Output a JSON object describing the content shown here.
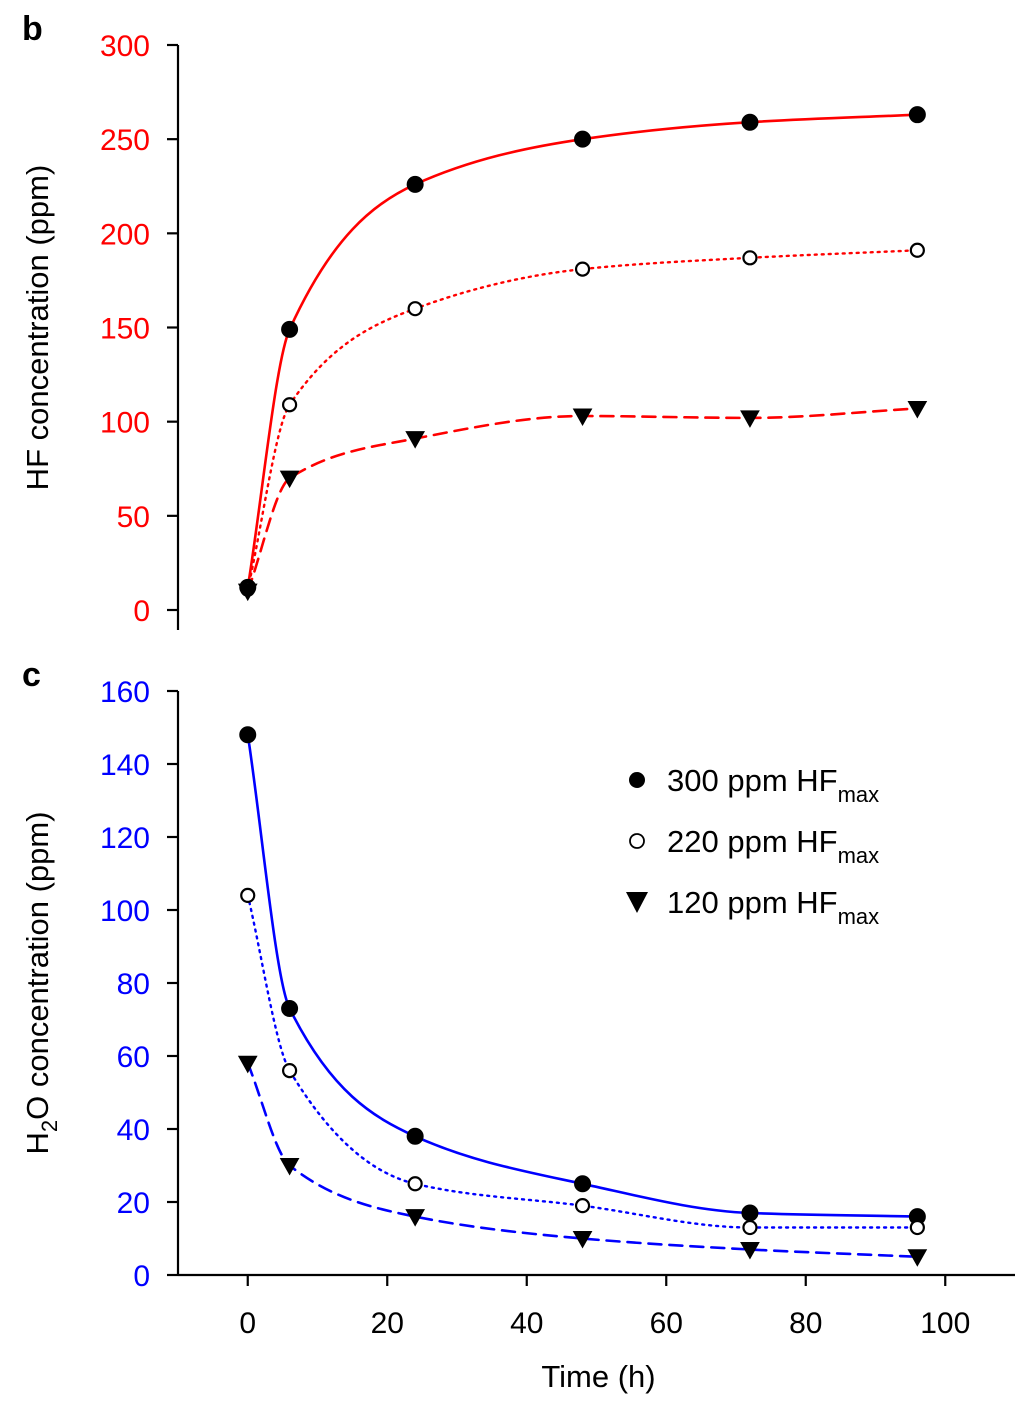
{
  "chart_data": [
    {
      "panel_label": "b",
      "type": "line",
      "ylabel": "HF concentration (ppm)",
      "ylabel_color": "#000000",
      "tick_color": "#ff0000",
      "line_color": "#ff0000",
      "xlim": [
        -10,
        110
      ],
      "ylim": [
        0,
        300
      ],
      "yticks": [
        0,
        50,
        100,
        150,
        200,
        250,
        300
      ],
      "x": [
        0,
        6,
        24,
        48,
        72,
        96
      ],
      "series": [
        {
          "name": "300 ppm HF_max",
          "marker": "filled-circle",
          "line": "solid",
          "values": [
            12,
            149,
            226,
            250,
            259,
            263
          ]
        },
        {
          "name": "220 ppm HF_max",
          "marker": "open-circle",
          "line": "dotted",
          "values": [
            11,
            109,
            160,
            181,
            187,
            191
          ]
        },
        {
          "name": "120 ppm HF_max",
          "marker": "filled-triangle-down",
          "line": "dashed",
          "values": [
            10,
            70,
            91,
            103,
            102,
            107
          ]
        }
      ]
    },
    {
      "panel_label": "c",
      "type": "line",
      "ylabel_main": "H",
      "ylabel_sub": "2",
      "ylabel_rest": "O concentration (ppm)",
      "tick_color": "#0000ff",
      "line_color": "#0000ff",
      "xlabel": "Time (h)",
      "xlim": [
        -10,
        110
      ],
      "xticks": [
        0,
        20,
        40,
        60,
        80,
        100
      ],
      "ylim": [
        0,
        160
      ],
      "yticks": [
        0,
        20,
        40,
        60,
        80,
        100,
        120,
        140,
        160
      ],
      "x": [
        0,
        6,
        24,
        48,
        72,
        96
      ],
      "series": [
        {
          "name": "300 ppm HF_max",
          "marker": "filled-circle",
          "line": "solid",
          "values": [
            148,
            73,
            38,
            25,
            17,
            16
          ]
        },
        {
          "name": "220 ppm HF_max",
          "marker": "open-circle",
          "line": "dotted",
          "values": [
            104,
            56,
            25,
            19,
            13,
            13
          ]
        },
        {
          "name": "120 ppm HF_max",
          "marker": "filled-triangle-down",
          "line": "dashed",
          "values": [
            58,
            30,
            16,
            10,
            7,
            5
          ]
        }
      ],
      "legend": {
        "placement": "top-right",
        "entries": [
          {
            "prefix": "300 ppm HF",
            "sub": "max",
            "marker": "filled-circle"
          },
          {
            "prefix": "220 ppm HF",
            "sub": "max",
            "marker": "open-circle"
          },
          {
            "prefix": "120 ppm HF",
            "sub": "max",
            "marker": "filled-triangle-down"
          }
        ]
      }
    }
  ]
}
